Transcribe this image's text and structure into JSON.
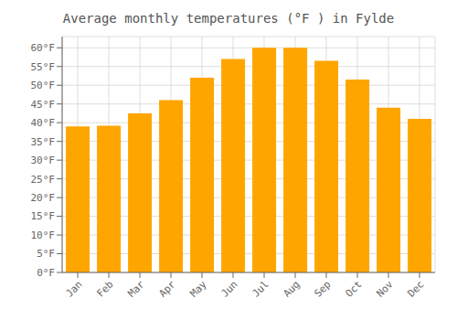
{
  "chart_data": {
    "type": "bar",
    "title": "Average monthly temperatures (°F ) in Fylde",
    "categories": [
      "Jan",
      "Feb",
      "Mar",
      "Apr",
      "May",
      "Jun",
      "Jul",
      "Aug",
      "Sep",
      "Oct",
      "Nov",
      "Dec"
    ],
    "values": [
      39.0,
      39.2,
      42.5,
      46.0,
      52.0,
      57.0,
      60.0,
      60.0,
      56.5,
      51.5,
      44.0,
      41.0
    ],
    "color": "#FFA500",
    "ylim": [
      0,
      63
    ],
    "yticks": [
      {
        "value": 0,
        "label": "0°F"
      },
      {
        "value": 5,
        "label": "5°F"
      },
      {
        "value": 10,
        "label": "10°F"
      },
      {
        "value": 15,
        "label": "15°F"
      },
      {
        "value": 20,
        "label": "20°F"
      },
      {
        "value": 25,
        "label": "25°F"
      },
      {
        "value": 30,
        "label": "30°F"
      },
      {
        "value": 35,
        "label": "35°F"
      },
      {
        "value": 40,
        "label": "40°F"
      },
      {
        "value": 45,
        "label": "45°F"
      },
      {
        "value": 50,
        "label": "50°F"
      },
      {
        "value": 55,
        "label": "55°F"
      },
      {
        "value": 60,
        "label": "60°F"
      }
    ],
    "grid": true
  }
}
